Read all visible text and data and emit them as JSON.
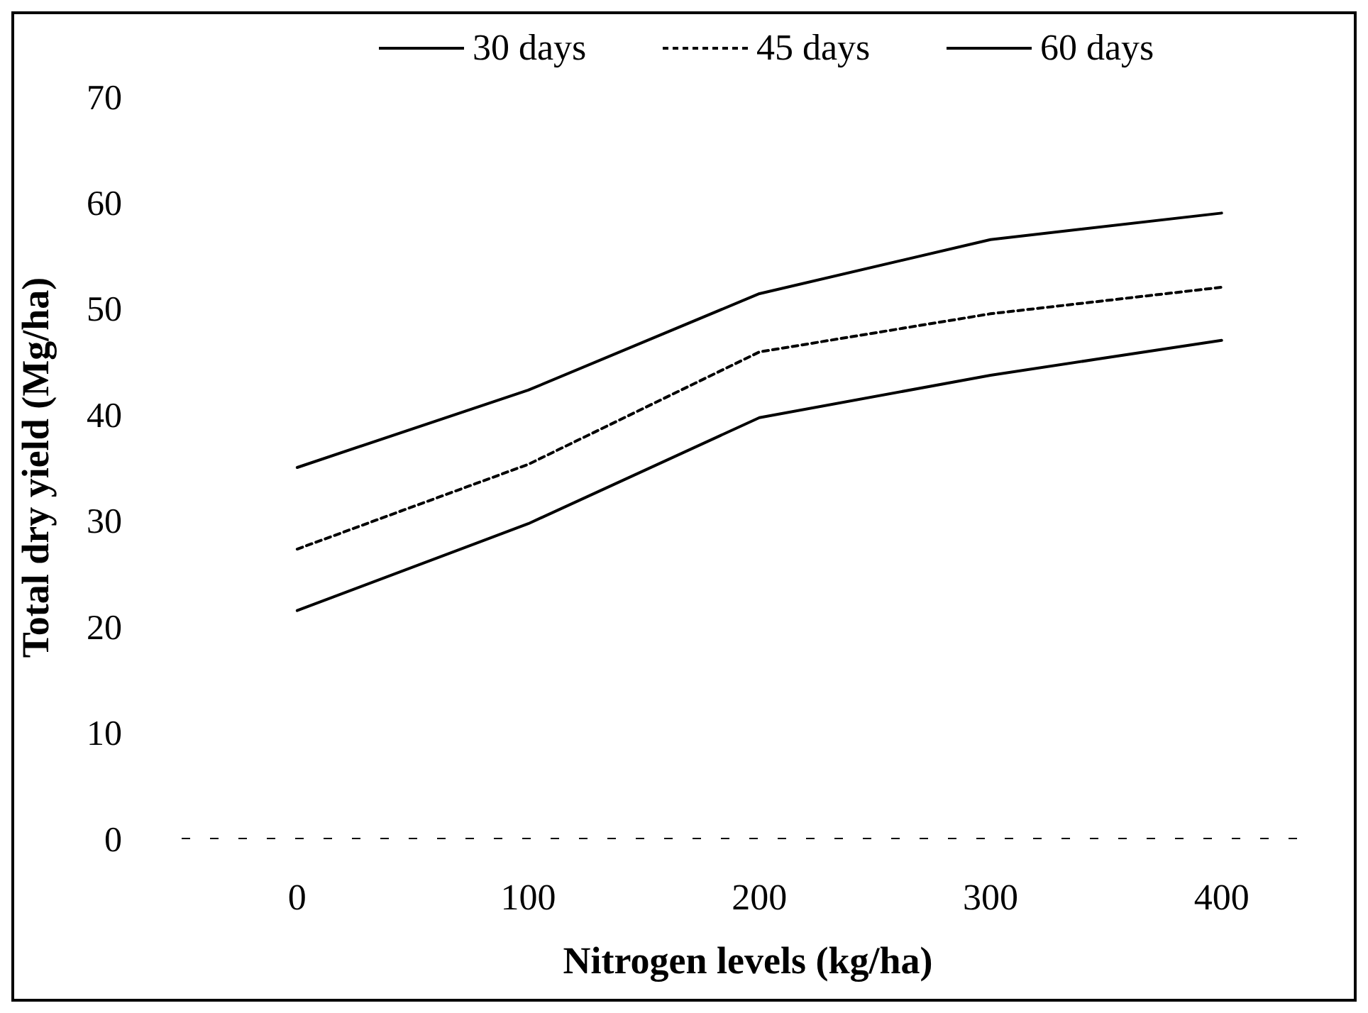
{
  "chart_data": {
    "type": "line",
    "xlabel": "Nitrogen levels (kg/ha)",
    "ylabel": "Total dry yield (Mg/ha)",
    "x": [
      0,
      100,
      200,
      300,
      400
    ],
    "xlim": [
      -50,
      440
    ],
    "xticks": [
      0,
      100,
      200,
      300,
      400
    ],
    "ylim": [
      0,
      70
    ],
    "yticks": [
      0,
      10,
      20,
      30,
      40,
      50,
      60,
      70
    ],
    "grid": false,
    "legend": "top",
    "marker": "none",
    "series": [
      {
        "name": "30 days",
        "color": "#000000",
        "line_style": "solid",
        "values": [
          21.5,
          29.7,
          39.7,
          43.7,
          47
        ]
      },
      {
        "name": "45 days",
        "color": "#000000",
        "line_style": "dashed",
        "values": [
          27.3,
          35.3,
          45.9,
          49.5,
          52
        ]
      },
      {
        "name": "60 days",
        "color": "#000000",
        "line_style": "solid",
        "values": [
          35,
          42.3,
          51.4,
          56.5,
          59
        ]
      }
    ]
  }
}
